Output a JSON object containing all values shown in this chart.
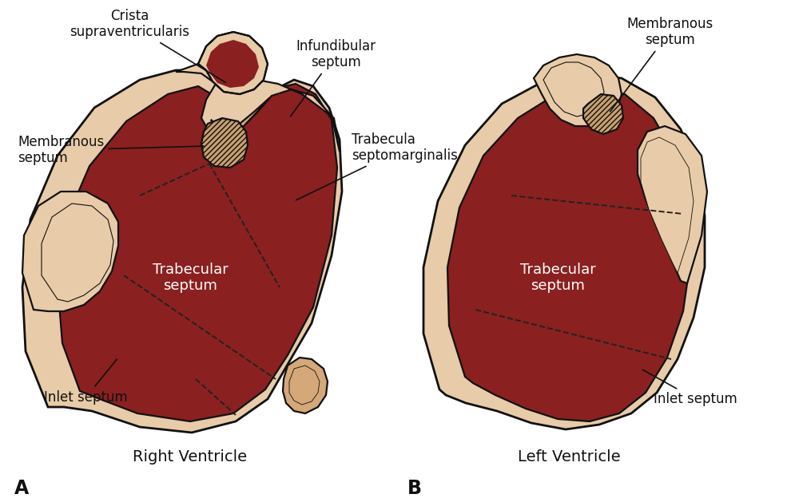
{
  "bg_color": "#FFFFFF",
  "skin_light": "#E8CBA8",
  "skin_medium": "#D4A878",
  "skin_pale": "#F0DCC5",
  "dark_red": "#8B2020",
  "medium_red": "#A03535",
  "hatch_fill": "#C8A070",
  "outline_color": "#111111",
  "text_color": "#111111",
  "white_text": "#FFFFFF",
  "dashed_color": "#222222",
  "label_right": "Right Ventricle",
  "label_left": "Left Ventricle",
  "label_A": "A",
  "label_B": "B",
  "fs_annot": 12,
  "fs_label": 14,
  "fs_AB": 17,
  "fs_inner": 13,
  "lw_outer": 2.0,
  "lw_inner": 1.6,
  "lw_dashed": 1.4
}
